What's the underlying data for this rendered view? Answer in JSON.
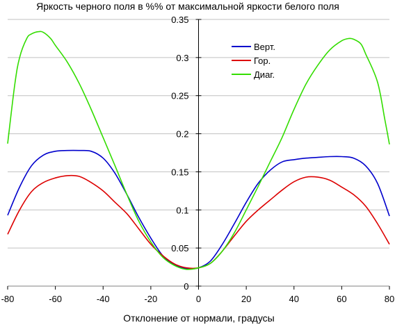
{
  "chart_data": {
    "type": "line",
    "title": "Яркость черного поля в %% от максимальной яркости белого поля",
    "xlabel": "Отклонение от нормали, градусы",
    "ylabel": "",
    "xlim": [
      -80,
      80
    ],
    "ylim": [
      0,
      0.35
    ],
    "x_ticks": [
      "-80",
      "-60",
      "-40",
      "-20",
      "0",
      "20",
      "40",
      "60",
      "80"
    ],
    "y_ticks": [
      "0",
      "0.05",
      "0.1",
      "0.15",
      "0.2",
      "0.25",
      "0.3",
      "0.35"
    ],
    "grid": "horizontal",
    "legend_position": "top-right",
    "series": [
      {
        "name": "Верт.",
        "color": "#0000cc",
        "x": [
          -80,
          -75,
          -70,
          -65,
          -60,
          -55,
          -50,
          -45,
          -40,
          -35,
          -30,
          -25,
          -20,
          -15,
          -10,
          -5,
          0,
          5,
          10,
          15,
          20,
          25,
          30,
          35,
          40,
          45,
          50,
          55,
          60,
          65,
          70,
          75,
          80
        ],
        "y": [
          0.093,
          0.13,
          0.158,
          0.172,
          0.177,
          0.178,
          0.178,
          0.177,
          0.168,
          0.148,
          0.12,
          0.09,
          0.063,
          0.04,
          0.028,
          0.023,
          0.024,
          0.033,
          0.055,
          0.082,
          0.11,
          0.135,
          0.152,
          0.163,
          0.166,
          0.168,
          0.169,
          0.17,
          0.17,
          0.168,
          0.158,
          0.135,
          0.092
        ]
      },
      {
        "name": "Гор.",
        "color": "#dd0000",
        "x": [
          -80,
          -75,
          -70,
          -65,
          -60,
          -55,
          -50,
          -45,
          -40,
          -35,
          -30,
          -25,
          -20,
          -15,
          -10,
          -5,
          0,
          5,
          10,
          15,
          20,
          25,
          30,
          35,
          40,
          45,
          50,
          55,
          60,
          65,
          70,
          75,
          80
        ],
        "y": [
          0.068,
          0.1,
          0.124,
          0.136,
          0.142,
          0.145,
          0.144,
          0.136,
          0.125,
          0.11,
          0.095,
          0.075,
          0.055,
          0.04,
          0.029,
          0.024,
          0.024,
          0.03,
          0.046,
          0.066,
          0.085,
          0.1,
          0.113,
          0.126,
          0.137,
          0.143,
          0.143,
          0.139,
          0.13,
          0.12,
          0.105,
          0.082,
          0.055
        ]
      },
      {
        "name": "Диаг.",
        "color": "#33dd00",
        "x": [
          -80,
          -77,
          -75,
          -72,
          -70,
          -67,
          -65,
          -62,
          -60,
          -55,
          -50,
          -45,
          -40,
          -35,
          -30,
          -25,
          -20,
          -15,
          -10,
          -5,
          0,
          5,
          10,
          15,
          20,
          25,
          30,
          35,
          40,
          45,
          50,
          55,
          60,
          63,
          65,
          68,
          70,
          75,
          78,
          80
        ],
        "y": [
          0.187,
          0.265,
          0.3,
          0.325,
          0.331,
          0.334,
          0.333,
          0.325,
          0.316,
          0.294,
          0.266,
          0.232,
          0.195,
          0.158,
          0.12,
          0.085,
          0.058,
          0.038,
          0.027,
          0.022,
          0.024,
          0.03,
          0.046,
          0.07,
          0.1,
          0.131,
          0.163,
          0.195,
          0.232,
          0.265,
          0.29,
          0.31,
          0.322,
          0.325,
          0.324,
          0.318,
          0.305,
          0.268,
          0.22,
          0.186
        ]
      }
    ]
  }
}
